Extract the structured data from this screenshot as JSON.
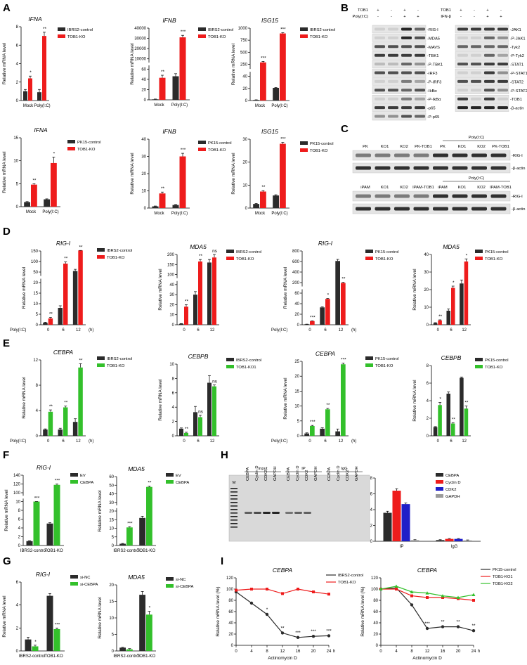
{
  "panel_letters": [
    "A",
    "B",
    "C",
    "D",
    "E",
    "F",
    "G",
    "H",
    "I"
  ],
  "colors": {
    "black": "#2b2b2b",
    "red": "#ee1c1c",
    "green": "#33c02b",
    "blue": "#1e1ec8",
    "gray": "#9a9a9a"
  },
  "common": {
    "ylabel": "Relative mRNA level",
    "poly_ic": "Poly(I:C)",
    "h": "(h)"
  },
  "chart_data": [
    {
      "id": "A1",
      "type": "bar",
      "title": "IFNA",
      "categories": [
        "Mock",
        "Poly(I:C)"
      ],
      "ylabel": "Relative mRNA level",
      "ticks": [
        0,
        2,
        4,
        6,
        8
      ],
      "series": [
        {
          "name": "IBRS2-control",
          "values": [
            1.0,
            0.9
          ],
          "errors": [
            0.2,
            0.3
          ]
        },
        {
          "name": "TOB1-KO",
          "values": [
            2.4,
            7.0
          ],
          "errors": [
            0.25,
            0.4
          ]
        }
      ],
      "sig": [
        "*",
        "**"
      ]
    },
    {
      "id": "A2",
      "type": "bar",
      "title": "IFNB",
      "categories": [
        "Mock",
        "Poly(I:C)"
      ],
      "ylabel": "Relative mRNA level",
      "ticks": [
        "0",
        "20",
        "40",
        "60",
        "10000",
        "20000",
        "30000",
        "40000"
      ],
      "series": [
        {
          "name": "IBRS2-control",
          "values": [
            1,
            46
          ],
          "errors": [
            0.5,
            5
          ]
        },
        {
          "name": "TOB1-KO",
          "values": [
            43,
            31000
          ],
          "errors": [
            5,
            2000
          ]
        }
      ],
      "sig": [
        "**",
        "***"
      ]
    },
    {
      "id": "A3",
      "type": "bar",
      "title": "ISG15",
      "categories": [
        "Mock",
        "Poly(I:C)"
      ],
      "ylabel": "Relative mRNA level",
      "ticks": [
        "0",
        "20",
        "40",
        "250",
        "500",
        "750",
        "1000"
      ],
      "series": [
        {
          "name": "IBRS2-control",
          "values": [
            1,
            21
          ],
          "errors": [
            0.2,
            0.5
          ]
        },
        {
          "name": "TOB1-KO",
          "values": [
            290,
            890
          ],
          "errors": [
            20,
            15
          ]
        }
      ],
      "sig": [
        "***",
        "***"
      ]
    },
    {
      "id": "A4",
      "type": "bar",
      "title": "IFNA",
      "categories": [
        "Mock",
        "Poly(I:C)"
      ],
      "ylabel": "Relative mRNA level",
      "ticks": [
        0,
        5,
        10,
        15
      ],
      "series": [
        {
          "name": "PK15-control",
          "values": [
            1.0,
            1.6
          ],
          "errors": [
            0.1,
            0.1
          ]
        },
        {
          "name": "TOB1-KO",
          "values": [
            4.8,
            9.5
          ],
          "errors": [
            0.2,
            1.3
          ]
        }
      ],
      "sig": [
        "**",
        "*"
      ]
    },
    {
      "id": "A5",
      "type": "bar",
      "title": "IFNB",
      "categories": [
        "Mock",
        "Poly(I:C)"
      ],
      "ylabel": "Relative mRNA level",
      "ticks": [
        0,
        10,
        20,
        30,
        40
      ],
      "series": [
        {
          "name": "PK15-control",
          "values": [
            1,
            1.8
          ],
          "errors": [
            0.2,
            0.3
          ]
        },
        {
          "name": "TOB1-KO",
          "values": [
            8.5,
            30
          ],
          "errors": [
            0.8,
            1.8
          ]
        }
      ],
      "sig": [
        "**",
        "***"
      ]
    },
    {
      "id": "A6",
      "type": "bar",
      "title": "ISG15",
      "categories": [
        "Mock",
        "Poly(I:C)"
      ],
      "ylabel": "Relative mRNA level",
      "ticks": [
        0,
        10,
        20,
        30
      ],
      "series": [
        {
          "name": "PK15-control",
          "values": [
            1.8,
            5.5
          ],
          "errors": [
            0.2,
            0.3
          ]
        },
        {
          "name": "TOB1-KO",
          "values": [
            7.2,
            28
          ],
          "errors": [
            0.4,
            0.6
          ]
        }
      ],
      "sig": [
        "**",
        "***"
      ]
    },
    {
      "id": "D1",
      "type": "bar",
      "title": "RIG-I",
      "categories": [
        "0",
        "6",
        "12"
      ],
      "ylabel": "Relative mRNA level",
      "ticks": [
        "0",
        "5",
        "10",
        "15",
        "20",
        "50",
        "100",
        "150"
      ],
      "series": [
        {
          "name": "IBRS2-control",
          "values": [
            1,
            8,
            55
          ],
          "errors": [
            0.2,
            1,
            8
          ]
        },
        {
          "name": "TOB1-KO",
          "values": [
            3,
            90,
            155
          ],
          "errors": [
            0.5,
            8,
            6
          ]
        }
      ],
      "sig": [
        "**",
        "**",
        "**"
      ]
    },
    {
      "id": "D2",
      "type": "bar",
      "title": "MDA5",
      "categories": [
        "0",
        "6",
        "12"
      ],
      "ylabel": "Relative mRNA level",
      "ticks": [
        "0",
        "10",
        "20",
        "30",
        "40",
        "100",
        "150",
        "200"
      ],
      "series": [
        {
          "name": "IBRS2-control",
          "values": [
            1,
            30,
            160
          ],
          "errors": [
            0.2,
            3,
            15
          ]
        },
        {
          "name": "TOB1-KO",
          "values": [
            18,
            165,
            185
          ],
          "errors": [
            2,
            10,
            15
          ]
        }
      ],
      "sig": [
        "**",
        "**",
        "ns"
      ]
    },
    {
      "id": "D3",
      "type": "bar",
      "title": "RIG-I",
      "categories": [
        "0",
        "6",
        "12"
      ],
      "ylabel": "Relative mRNA level",
      "ticks": [
        "0",
        "20",
        "40",
        "60",
        "200",
        "400",
        "600",
        "800"
      ],
      "series": [
        {
          "name": "PK15-control",
          "values": [
            1,
            33,
            610
          ],
          "errors": [
            0.2,
            1,
            30
          ]
        },
        {
          "name": "TOB1-KO",
          "values": [
            7,
            49,
            195
          ],
          "errors": [
            0.5,
            1,
            10
          ]
        }
      ],
      "sig": [
        "***",
        "*",
        "**"
      ]
    },
    {
      "id": "D4",
      "type": "bar",
      "title": "MDA5",
      "categories": [
        "0",
        "6",
        "12"
      ],
      "ylabel": "Relative mRNA level",
      "ticks": [
        0,
        10,
        20,
        30,
        40
      ],
      "series": [
        {
          "name": "PK15-control",
          "values": [
            1,
            8,
            23.5
          ],
          "errors": [
            0.2,
            1,
            2
          ]
        },
        {
          "name": "TOB1-KO",
          "values": [
            2.5,
            21,
            36
          ],
          "errors": [
            0.3,
            1,
            1.5
          ]
        }
      ],
      "sig": [
        "**",
        "*",
        "*"
      ]
    },
    {
      "id": "E1",
      "type": "bar",
      "title": "CEBPA",
      "categories": [
        "0",
        "6",
        "12"
      ],
      "ylabel": "Relative mRNA level",
      "ticks": [
        0,
        4,
        8,
        12
      ],
      "series": [
        {
          "name": "IBRS2-control",
          "values": [
            1,
            1,
            2.2
          ],
          "errors": [
            0.1,
            0.2,
            0.5
          ]
        },
        {
          "name": "TOB1-KO",
          "values": [
            3.8,
            4.5,
            10.8
          ],
          "errors": [
            0.3,
            0.2,
            0.6
          ]
        }
      ],
      "sig": [
        "**",
        "**",
        "**"
      ]
    },
    {
      "id": "E2",
      "type": "bar",
      "title": "CEBPB",
      "categories": [
        "0",
        "6",
        "12"
      ],
      "ylabel": "Relative mRNA level",
      "ticks": [
        0,
        2,
        4,
        6,
        8,
        10
      ],
      "series": [
        {
          "name": "IBRS2-control",
          "values": [
            1,
            3.3,
            7.4
          ],
          "errors": [
            0.1,
            0.8,
            1.0
          ]
        },
        {
          "name": "TOB1-KO1",
          "values": [
            0.4,
            2.6,
            6.9
          ],
          "errors": [
            0.1,
            0.3,
            0.2
          ]
        }
      ],
      "sig": [
        "**",
        "ns",
        "ns"
      ]
    },
    {
      "id": "E3",
      "type": "bar",
      "title": "CEBPA",
      "categories": [
        "0",
        "6",
        "12"
      ],
      "ylabel": "Relative mRNA level",
      "ticks": [
        0,
        5,
        10,
        15,
        20,
        25
      ],
      "series": [
        {
          "name": "PK15-control",
          "values": [
            0.8,
            2.4,
            1.5
          ],
          "errors": [
            0.2,
            0.3,
            0.8
          ]
        },
        {
          "name": "TOB1-KO",
          "values": [
            3.3,
            8.9,
            24
          ],
          "errors": [
            0.2,
            0.3,
            0.4
          ]
        }
      ],
      "sig": [
        "***",
        "**",
        "***"
      ]
    },
    {
      "id": "E4",
      "type": "bar",
      "title": "CEBPB",
      "categories": [
        "0",
        "6",
        "12"
      ],
      "ylabel": "Relative mRNA level",
      "ticks": [
        0,
        2,
        4,
        6,
        8
      ],
      "series": [
        {
          "name": "PK15-control",
          "values": [
            1,
            4.8,
            6.6
          ],
          "errors": [
            0.05,
            0.2,
            0.1
          ]
        },
        {
          "name": "TOB1-KO",
          "values": [
            3.5,
            1.4,
            3.1
          ],
          "errors": [
            0.3,
            0.1,
            0.3
          ]
        }
      ],
      "sig": [
        "*",
        "**",
        "**"
      ]
    },
    {
      "id": "F1",
      "type": "bar",
      "title": "RIG-I",
      "categories": [
        "IBRS2-control",
        "TOB1-KO"
      ],
      "ylabel": "Relative mRNA level",
      "ticks": [
        "0",
        "2",
        "4",
        "6",
        "8",
        "10",
        "100",
        "120",
        "140"
      ],
      "series": [
        {
          "name": "EV",
          "values": [
            1,
            5
          ],
          "errors": [
            0.1,
            0.2
          ]
        },
        {
          "name": "CEBPA",
          "values": [
            10,
            118
          ],
          "errors": [
            0.3,
            2
          ]
        }
      ],
      "sig": [
        "***",
        "***"
      ]
    },
    {
      "id": "F2",
      "type": "bar",
      "title": "MDA5",
      "categories": [
        "IBRS2-control",
        "TOB1-KO"
      ],
      "ylabel": "Relative mRNA level",
      "ticks": [
        "0",
        "5",
        "10",
        "15",
        "20",
        "30",
        "40",
        "50",
        "60"
      ],
      "series": [
        {
          "name": "EV",
          "values": [
            1,
            16
          ],
          "errors": [
            0.2,
            1
          ]
        },
        {
          "name": "CEBPA",
          "values": [
            10.5,
            48
          ],
          "errors": [
            0.4,
            1
          ]
        }
      ],
      "sig": [
        "***",
        "**"
      ]
    },
    {
      "id": "G1",
      "type": "bar",
      "title": "RIG-I",
      "categories": [
        "IBRS2-control",
        "TOB1-KO"
      ],
      "ylabel": "Relative mRNA level",
      "ticks": [
        0,
        2,
        4,
        6
      ],
      "series": [
        {
          "name": "si-NC",
          "values": [
            1,
            4.8
          ],
          "errors": [
            0.2,
            0.2
          ]
        },
        {
          "name": "si-CEBPA",
          "values": [
            0.4,
            1.9
          ],
          "errors": [
            0.1,
            0.1
          ]
        }
      ],
      "sig": [
        "*",
        "***"
      ]
    },
    {
      "id": "G2",
      "type": "bar",
      "title": "MDA5",
      "categories": [
        "IBRS2-control",
        "TOB1-KO"
      ],
      "ylabel": "Relative mRNA level",
      "ticks": [
        0,
        5,
        10,
        15,
        20
      ],
      "series": [
        {
          "name": "si-NC",
          "values": [
            1,
            17
          ],
          "errors": [
            0.1,
            1
          ]
        },
        {
          "name": "si-CEBPA",
          "values": [
            0.5,
            11
          ],
          "errors": [
            0.2,
            1
          ]
        }
      ],
      "sig": [
        "",
        "*"
      ]
    },
    {
      "id": "H2",
      "type": "bar",
      "title": "",
      "categories": [
        "IP",
        "IgG"
      ],
      "ylabel": "% of input",
      "ticks": [
        0,
        2,
        4,
        6,
        8
      ],
      "series": [
        {
          "name": "CEBPA",
          "values": [
            3.6,
            0.15
          ],
          "errors": [
            0.2,
            0.05
          ]
        },
        {
          "name": "Cyclin D",
          "values": [
            6.4,
            0.3
          ],
          "errors": [
            0.25,
            0.05
          ]
        },
        {
          "name": "CDK2",
          "values": [
            4.7,
            0.3
          ],
          "errors": [
            0.15,
            0.05
          ]
        },
        {
          "name": "GAPDH",
          "values": [
            0.15,
            0.12
          ],
          "errors": [
            0.05,
            0.05
          ]
        }
      ],
      "sig": []
    },
    {
      "id": "I1",
      "type": "line",
      "title": "CEBPA",
      "xlabel": "Actinomycin D",
      "xunit": "h",
      "x": [
        0,
        4,
        8,
        12,
        16,
        20,
        24
      ],
      "ylabel": "Relative mRNA level (%)",
      "ticks": [
        0,
        20,
        40,
        60,
        80,
        100,
        120
      ],
      "series": [
        {
          "name": "IBRS2-control",
          "values": [
            95,
            75,
            55,
            22,
            14,
            16,
            17
          ]
        },
        {
          "name": "TOB1-KO",
          "values": [
            98,
            100,
            100,
            92,
            100,
            95,
            91
          ]
        }
      ],
      "sig": [
        "",
        "",
        "*",
        "**",
        "***",
        "***",
        "***"
      ]
    },
    {
      "id": "I2",
      "type": "line",
      "title": "CEBPA",
      "xlabel": "Actinomycin D",
      "xunit": "h",
      "x": [
        0,
        4,
        8,
        12,
        16,
        20,
        24
      ],
      "ylabel": "Relative mRNA level (%)",
      "ticks": [
        0,
        20,
        40,
        60,
        80,
        100,
        120
      ],
      "series": [
        {
          "name": "PK15-control",
          "values": [
            100,
            102,
            72,
            30,
            33,
            33,
            26
          ]
        },
        {
          "name": "TOB1-KO1",
          "values": [
            100,
            100,
            88,
            85,
            85,
            83,
            80
          ]
        },
        {
          "name": "TOB1-KO2",
          "values": [
            100,
            105,
            95,
            93,
            88,
            85,
            90
          ]
        }
      ],
      "sig": [
        "",
        "",
        "",
        "***",
        "**",
        "**",
        "**"
      ]
    }
  ],
  "blotB": {
    "left_header": [
      {
        "label": "TOB1",
        "marks": [
          "+",
          "-",
          "+",
          "-"
        ]
      },
      {
        "label": "Poly(I:C)",
        "marks": [
          "-",
          "-",
          "+",
          "+"
        ]
      }
    ],
    "left_labels": [
      "RIG-I",
      "MDA5",
      "MAVS",
      "TBK1",
      "P-TBK1",
      "IRF3",
      "P-IRF3",
      "IkBα",
      "P-IkBα",
      "p65",
      "P-p65"
    ],
    "right_header": [
      {
        "label": "TOB1",
        "marks": [
          "+",
          "-",
          "+",
          "-"
        ]
      },
      {
        "label": "IFN-β",
        "marks": [
          "-",
          "-",
          "+",
          "+"
        ]
      }
    ],
    "right_labels": [
      "JAK1",
      "P-JAK1",
      "Tyk2",
      "P-Tyk2",
      "STAT1",
      "P-STAT1",
      "STAT2",
      "P-STAT2",
      "TOB1",
      "β-actin"
    ]
  },
  "blotC": {
    "top_lanes": [
      "PK",
      "KO1",
      "KO2",
      "PK-TOB1",
      "PK",
      "KO1",
      "KO2",
      "PK-TOB1"
    ],
    "bottom_lanes": [
      "iPAM",
      "KO1",
      "KO2",
      "IPAM-TOB1",
      "iPAM",
      "KO1",
      "KO2",
      "IPAM-TOB1"
    ],
    "group_label": "Poly(I:C)",
    "labels": [
      "RIG-I",
      "β-actin"
    ]
  },
  "gelH": {
    "marker": "M",
    "groups": [
      "Input",
      "IP",
      "IgG"
    ],
    "lanes": [
      "CEBPA",
      "Cyclin D",
      "CDK2",
      "GAPDH"
    ]
  }
}
